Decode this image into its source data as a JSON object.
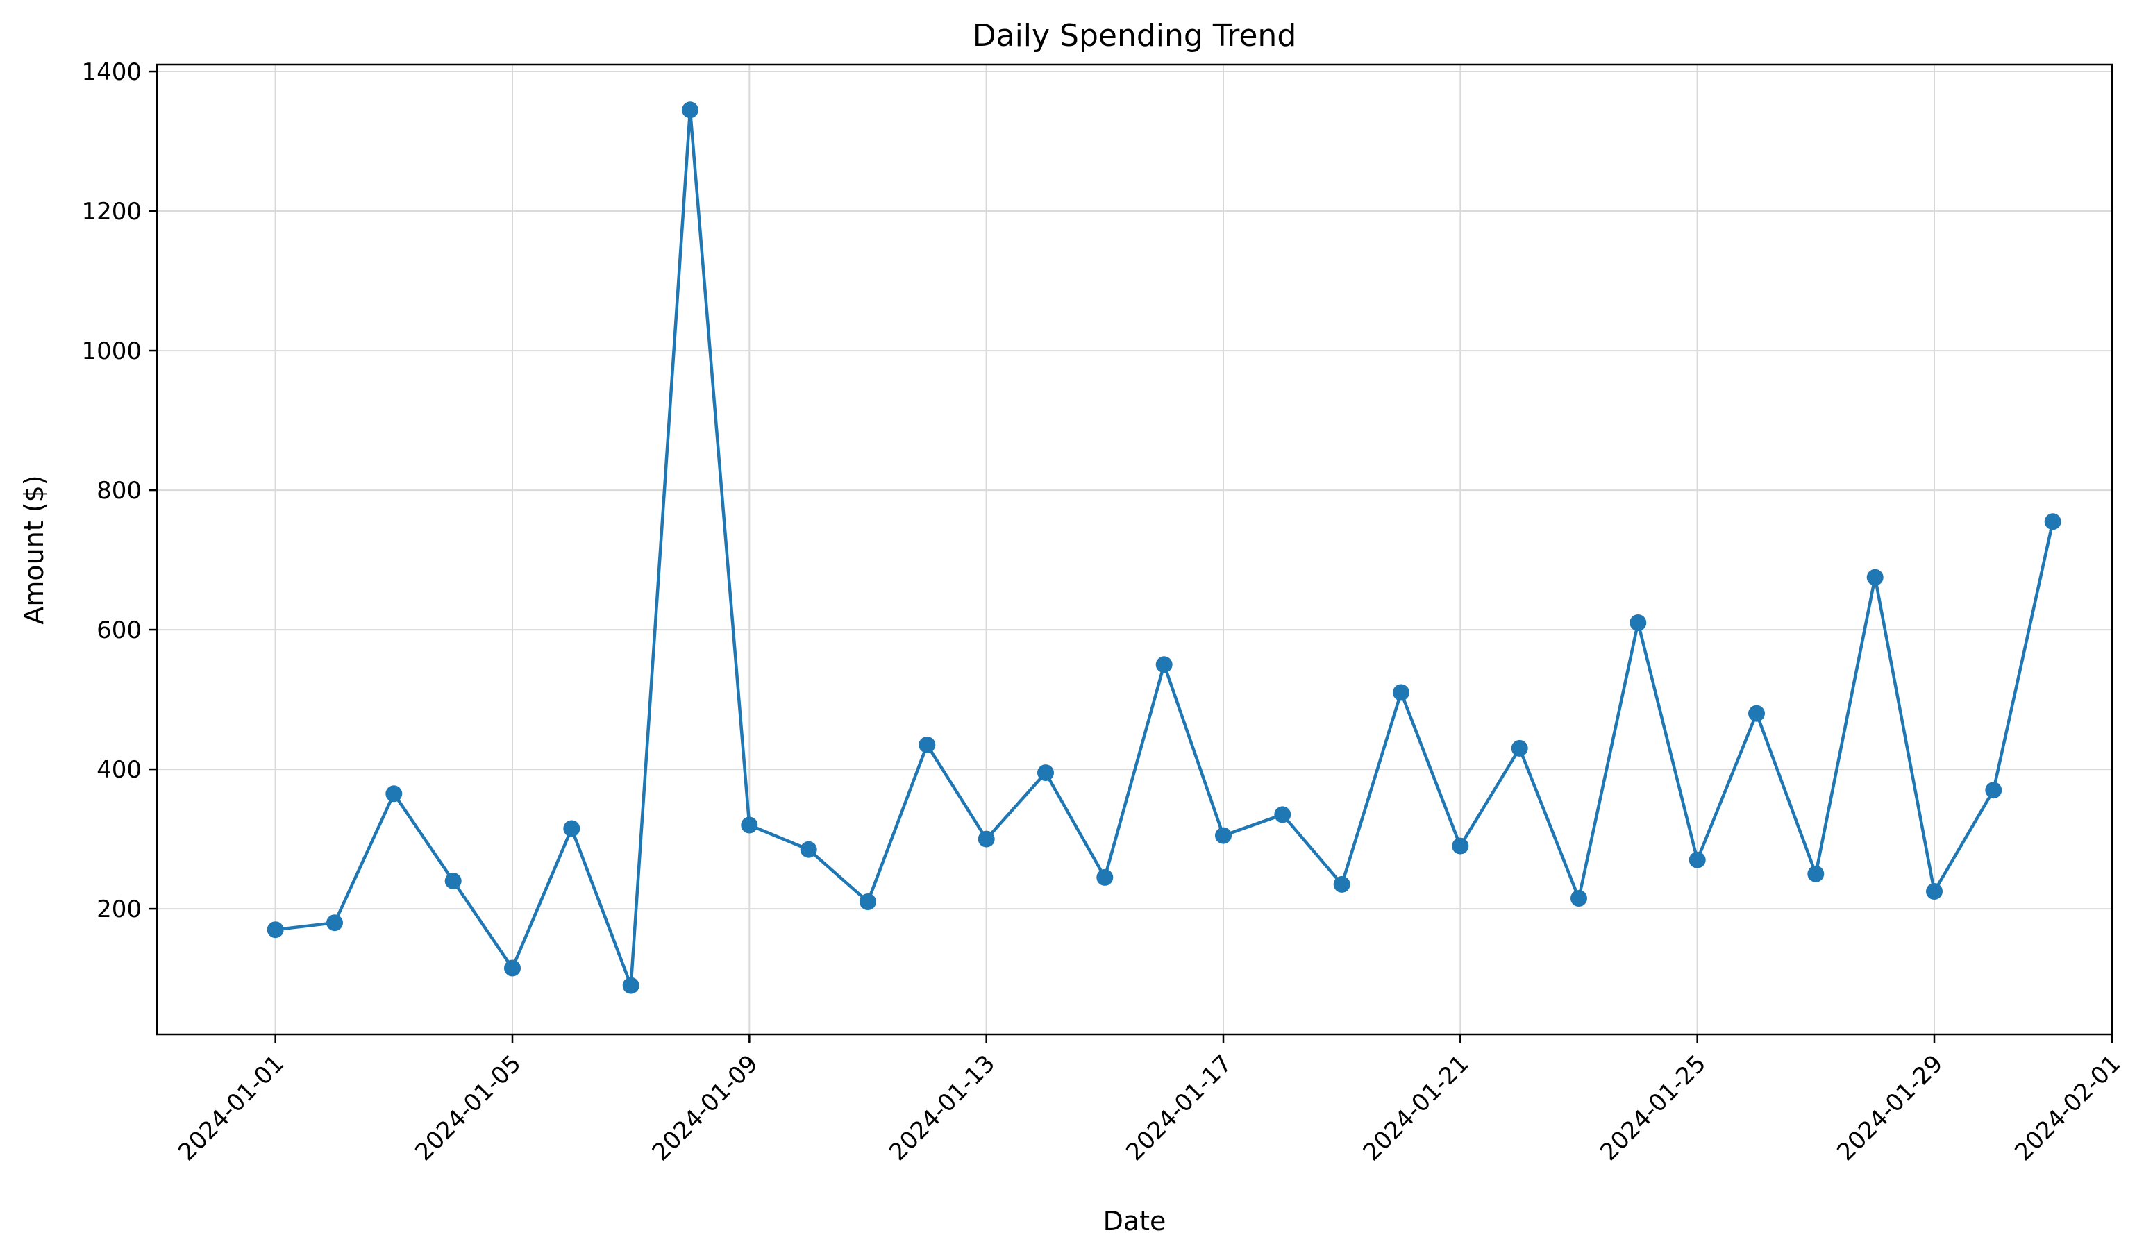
{
  "chart_data": {
    "type": "line",
    "title": "Daily Spending Trend",
    "xlabel": "Date",
    "ylabel": "Amount ($)",
    "x_range": [
      "2023-12-30",
      "2024-02-01"
    ],
    "ylim": [
      20,
      1410
    ],
    "grid": true,
    "legend": "none",
    "colors": {
      "series": "#1f77b4"
    },
    "x_ticks": [
      "2024-01-01",
      "2024-01-05",
      "2024-01-09",
      "2024-01-13",
      "2024-01-17",
      "2024-01-21",
      "2024-01-25",
      "2024-01-29",
      "2024-02-01"
    ],
    "y_ticks": [
      200,
      400,
      600,
      800,
      1000,
      1200,
      1400
    ],
    "series": [
      {
        "x": [
          "2024-01-01",
          "2024-01-02",
          "2024-01-03",
          "2024-01-04",
          "2024-01-05",
          "2024-01-06",
          "2024-01-07",
          "2024-01-08",
          "2024-01-09",
          "2024-01-10",
          "2024-01-11",
          "2024-01-12",
          "2024-01-13",
          "2024-01-14",
          "2024-01-15",
          "2024-01-16",
          "2024-01-17",
          "2024-01-18",
          "2024-01-19",
          "2024-01-20",
          "2024-01-21",
          "2024-01-22",
          "2024-01-23",
          "2024-01-24",
          "2024-01-25",
          "2024-01-26",
          "2024-01-27",
          "2024-01-28",
          "2024-01-29",
          "2024-01-30",
          "2024-01-31"
        ],
        "values": [
          170,
          180,
          365,
          240,
          115,
          315,
          90,
          1345,
          320,
          285,
          210,
          435,
          300,
          395,
          245,
          550,
          305,
          335,
          235,
          510,
          290,
          430,
          215,
          610,
          270,
          480,
          250,
          675,
          225,
          370,
          755
        ]
      }
    ]
  }
}
